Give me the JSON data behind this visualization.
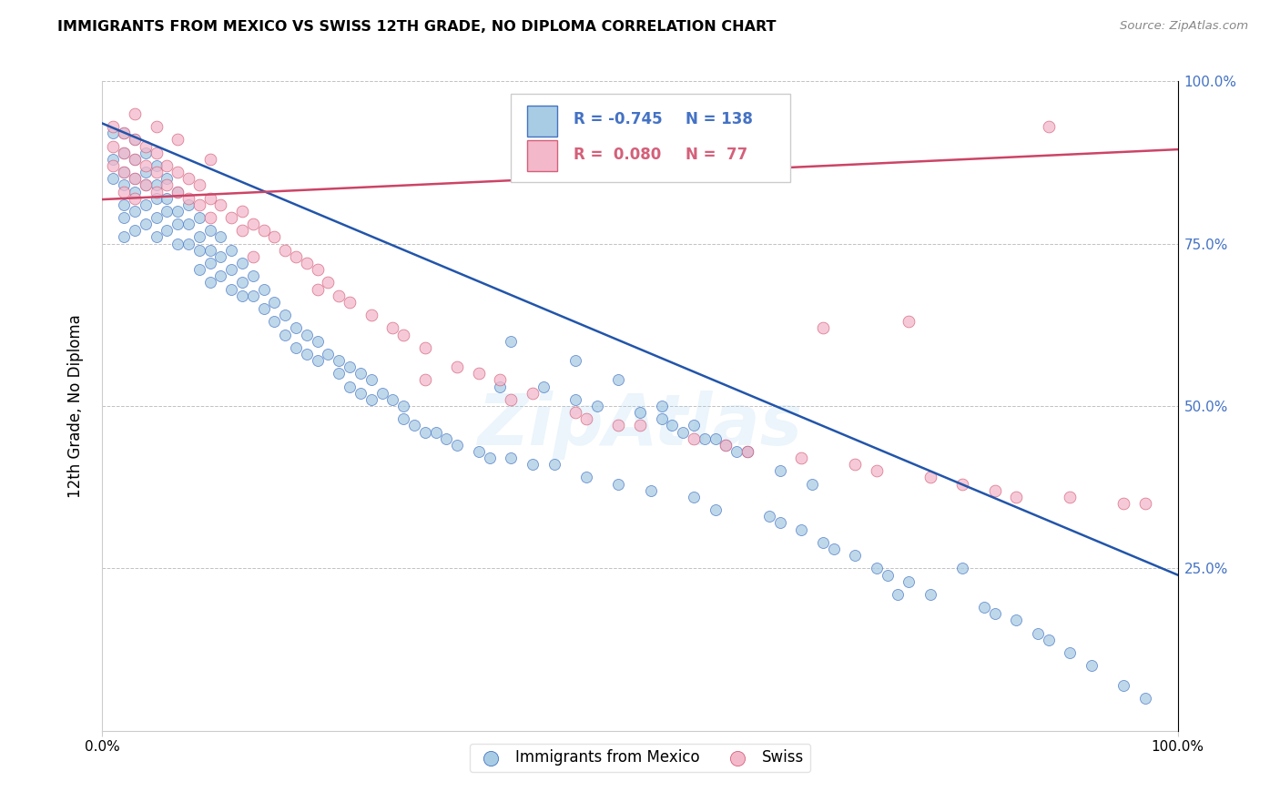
{
  "title": "IMMIGRANTS FROM MEXICO VS SWISS 12TH GRADE, NO DIPLOMA CORRELATION CHART",
  "source": "Source: ZipAtlas.com",
  "ylabel": "12th Grade, No Diploma",
  "xlim": [
    0.0,
    1.0
  ],
  "ylim": [
    0.0,
    1.0
  ],
  "yticks": [
    0.0,
    0.25,
    0.5,
    0.75,
    1.0
  ],
  "ytick_labels": [
    "",
    "25.0%",
    "50.0%",
    "75.0%",
    "100.0%"
  ],
  "legend_r_mexico": "-0.745",
  "legend_n_mexico": "138",
  "legend_r_swiss": "0.080",
  "legend_n_swiss": "77",
  "watermark": "ZipAtlas",
  "blue_color": "#a8cce4",
  "blue_edge_color": "#4472c4",
  "pink_color": "#f4b8cb",
  "pink_edge_color": "#d4607a",
  "blue_line_color": "#2255aa",
  "pink_line_color": "#cc4466",
  "blue_trend_x": [
    0.0,
    1.0
  ],
  "blue_trend_y": [
    0.935,
    0.24
  ],
  "pink_trend_x": [
    0.0,
    1.0
  ],
  "pink_trend_y": [
    0.818,
    0.895
  ],
  "grid_color": "#bbbbbb",
  "background_color": "#ffffff",
  "mexico_x": [
    0.01,
    0.01,
    0.01,
    0.02,
    0.02,
    0.02,
    0.02,
    0.02,
    0.02,
    0.02,
    0.03,
    0.03,
    0.03,
    0.03,
    0.03,
    0.03,
    0.04,
    0.04,
    0.04,
    0.04,
    0.04,
    0.05,
    0.05,
    0.05,
    0.05,
    0.05,
    0.06,
    0.06,
    0.06,
    0.06,
    0.07,
    0.07,
    0.07,
    0.07,
    0.08,
    0.08,
    0.08,
    0.09,
    0.09,
    0.09,
    0.09,
    0.1,
    0.1,
    0.1,
    0.1,
    0.11,
    0.11,
    0.11,
    0.12,
    0.12,
    0.12,
    0.13,
    0.13,
    0.13,
    0.14,
    0.14,
    0.15,
    0.15,
    0.16,
    0.16,
    0.17,
    0.17,
    0.18,
    0.18,
    0.19,
    0.19,
    0.2,
    0.2,
    0.21,
    0.22,
    0.22,
    0.23,
    0.23,
    0.24,
    0.24,
    0.25,
    0.25,
    0.26,
    0.27,
    0.28,
    0.28,
    0.29,
    0.3,
    0.31,
    0.32,
    0.33,
    0.35,
    0.36,
    0.37,
    0.38,
    0.4,
    0.41,
    0.42,
    0.44,
    0.45,
    0.46,
    0.48,
    0.5,
    0.51,
    0.52,
    0.53,
    0.54,
    0.55,
    0.56,
    0.57,
    0.58,
    0.59,
    0.6,
    0.62,
    0.63,
    0.65,
    0.67,
    0.68,
    0.7,
    0.72,
    0.73,
    0.75,
    0.77,
    0.8,
    0.82,
    0.83,
    0.85,
    0.87,
    0.88,
    0.9,
    0.92,
    0.95,
    0.97,
    0.74,
    0.38,
    0.44,
    0.48,
    0.52,
    0.55,
    0.57,
    0.6,
    0.63,
    0.66
  ],
  "mexico_y": [
    0.92,
    0.88,
    0.85,
    0.92,
    0.89,
    0.86,
    0.84,
    0.81,
    0.79,
    0.76,
    0.91,
    0.88,
    0.85,
    0.83,
    0.8,
    0.77,
    0.89,
    0.86,
    0.84,
    0.81,
    0.78,
    0.87,
    0.84,
    0.82,
    0.79,
    0.76,
    0.85,
    0.82,
    0.8,
    0.77,
    0.83,
    0.8,
    0.78,
    0.75,
    0.81,
    0.78,
    0.75,
    0.79,
    0.76,
    0.74,
    0.71,
    0.77,
    0.74,
    0.72,
    0.69,
    0.76,
    0.73,
    0.7,
    0.74,
    0.71,
    0.68,
    0.72,
    0.69,
    0.67,
    0.7,
    0.67,
    0.68,
    0.65,
    0.66,
    0.63,
    0.64,
    0.61,
    0.62,
    0.59,
    0.61,
    0.58,
    0.6,
    0.57,
    0.58,
    0.57,
    0.55,
    0.56,
    0.53,
    0.55,
    0.52,
    0.54,
    0.51,
    0.52,
    0.51,
    0.5,
    0.48,
    0.47,
    0.46,
    0.46,
    0.45,
    0.44,
    0.43,
    0.42,
    0.53,
    0.42,
    0.41,
    0.53,
    0.41,
    0.51,
    0.39,
    0.5,
    0.38,
    0.49,
    0.37,
    0.48,
    0.47,
    0.46,
    0.36,
    0.45,
    0.34,
    0.44,
    0.43,
    0.43,
    0.33,
    0.32,
    0.31,
    0.29,
    0.28,
    0.27,
    0.25,
    0.24,
    0.23,
    0.21,
    0.25,
    0.19,
    0.18,
    0.17,
    0.15,
    0.14,
    0.12,
    0.1,
    0.07,
    0.05,
    0.21,
    0.6,
    0.57,
    0.54,
    0.5,
    0.47,
    0.45,
    0.43,
    0.4,
    0.38
  ],
  "swiss_x": [
    0.01,
    0.01,
    0.01,
    0.02,
    0.02,
    0.02,
    0.02,
    0.03,
    0.03,
    0.03,
    0.03,
    0.04,
    0.04,
    0.04,
    0.05,
    0.05,
    0.05,
    0.06,
    0.06,
    0.07,
    0.07,
    0.08,
    0.08,
    0.09,
    0.09,
    0.1,
    0.1,
    0.11,
    0.12,
    0.13,
    0.13,
    0.14,
    0.15,
    0.16,
    0.17,
    0.18,
    0.19,
    0.2,
    0.21,
    0.22,
    0.23,
    0.25,
    0.27,
    0.28,
    0.3,
    0.33,
    0.35,
    0.37,
    0.4,
    0.44,
    0.48,
    0.5,
    0.55,
    0.58,
    0.6,
    0.65,
    0.67,
    0.7,
    0.72,
    0.75,
    0.77,
    0.8,
    0.83,
    0.85,
    0.88,
    0.9,
    0.95,
    0.97,
    0.3,
    0.38,
    0.45,
    0.1,
    0.07,
    0.05,
    0.03,
    0.14,
    0.2
  ],
  "swiss_y": [
    0.93,
    0.9,
    0.87,
    0.92,
    0.89,
    0.86,
    0.83,
    0.91,
    0.88,
    0.85,
    0.82,
    0.9,
    0.87,
    0.84,
    0.89,
    0.86,
    0.83,
    0.87,
    0.84,
    0.86,
    0.83,
    0.85,
    0.82,
    0.84,
    0.81,
    0.82,
    0.79,
    0.81,
    0.79,
    0.8,
    0.77,
    0.78,
    0.77,
    0.76,
    0.74,
    0.73,
    0.72,
    0.71,
    0.69,
    0.67,
    0.66,
    0.64,
    0.62,
    0.61,
    0.59,
    0.56,
    0.55,
    0.54,
    0.52,
    0.49,
    0.47,
    0.47,
    0.45,
    0.44,
    0.43,
    0.42,
    0.62,
    0.41,
    0.4,
    0.63,
    0.39,
    0.38,
    0.37,
    0.36,
    0.93,
    0.36,
    0.35,
    0.35,
    0.54,
    0.51,
    0.48,
    0.88,
    0.91,
    0.93,
    0.95,
    0.73,
    0.68
  ]
}
